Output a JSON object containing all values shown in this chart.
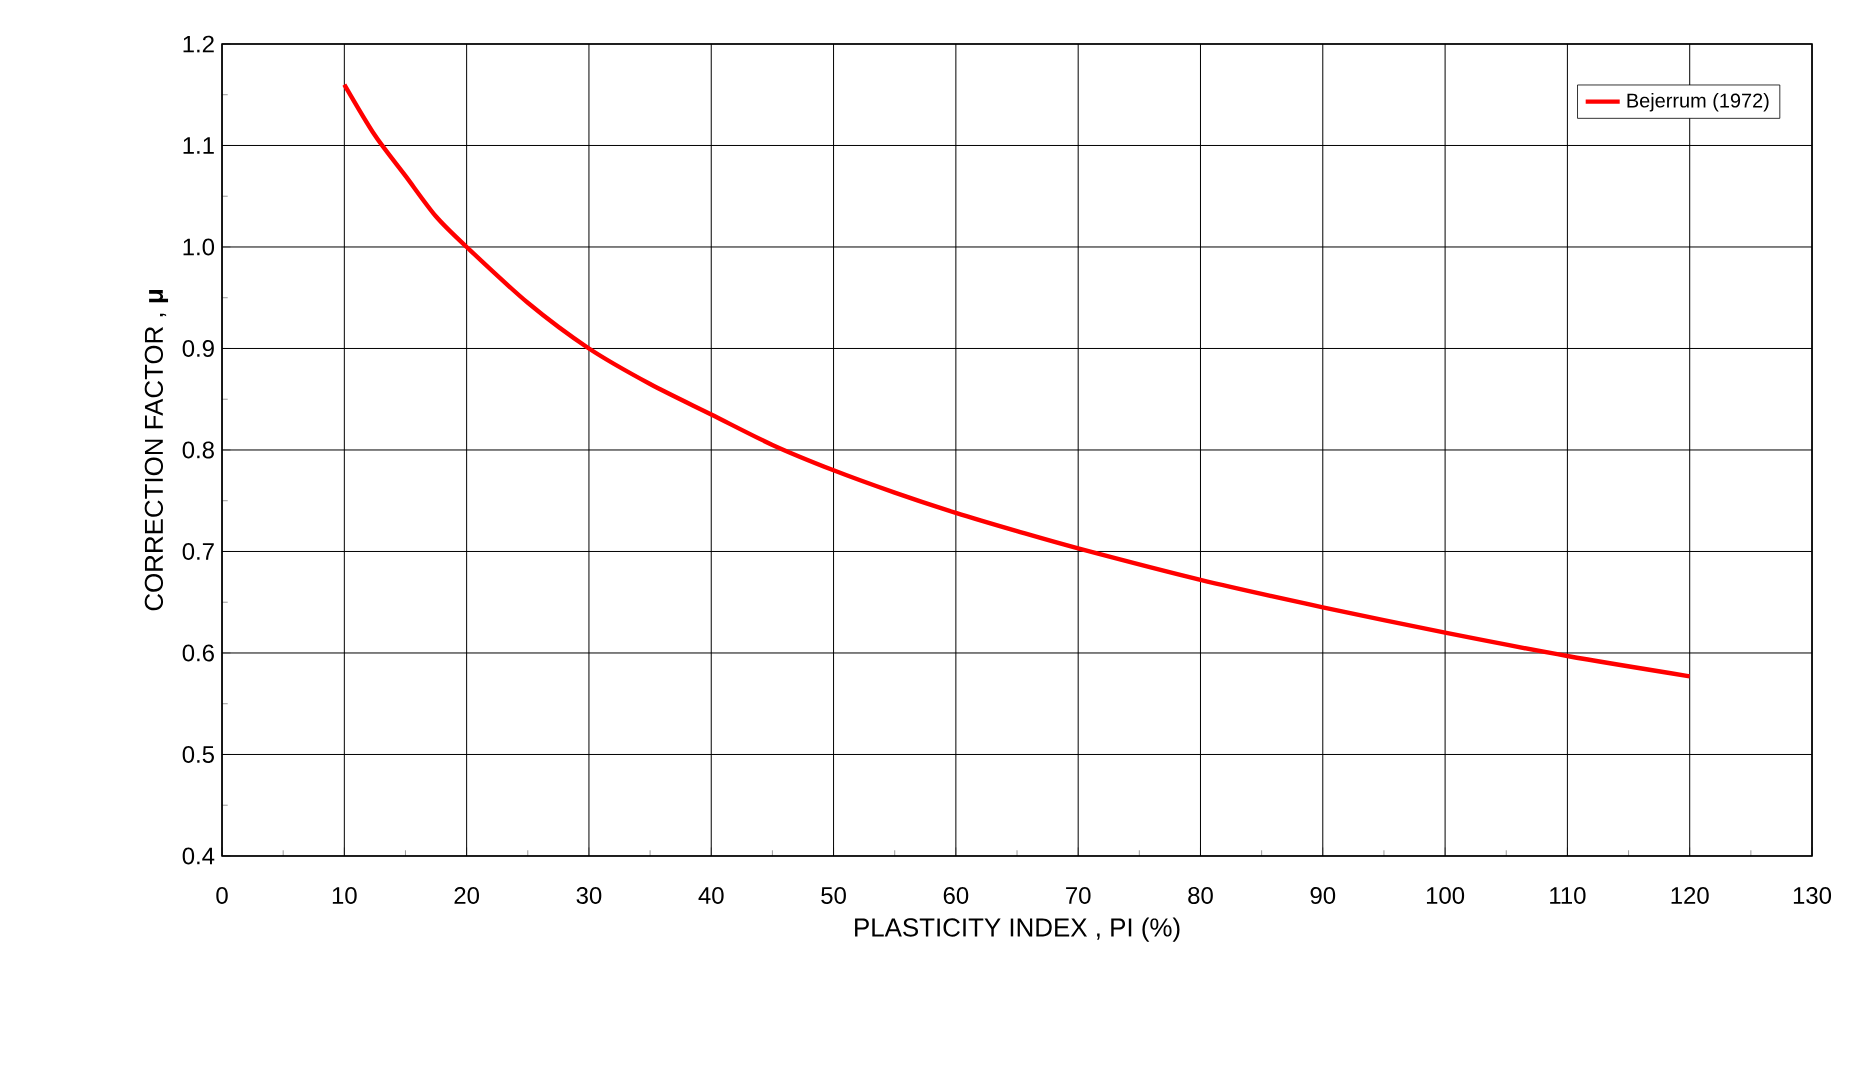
{
  "chart_data": {
    "type": "line",
    "xlabel": "PLASTICITY INDEX , PI (%)",
    "ylabel": "CORRECTION FACTOR , **μ**",
    "series": [
      {
        "name": "Bejerrum (1972)",
        "color": "#ff0000",
        "x": [
          10,
          12.5,
          15,
          17.5,
          20,
          25,
          30,
          35,
          40,
          45,
          50,
          55,
          60,
          65,
          70,
          80,
          90,
          100,
          110,
          120
        ],
        "values": [
          1.16,
          1.11,
          1.07,
          1.03,
          1.0,
          0.945,
          0.9,
          0.865,
          0.835,
          0.805,
          0.78,
          0.758,
          0.738,
          0.72,
          0.703,
          0.672,
          0.645,
          0.62,
          0.597,
          0.577
        ]
      }
    ],
    "xlim": [
      0,
      130
    ],
    "ylim": [
      0.4,
      1.2
    ],
    "xticks": [
      0,
      10,
      20,
      30,
      40,
      50,
      60,
      70,
      80,
      90,
      100,
      110,
      120,
      130
    ],
    "yticks": [
      {
        "value": 0.4,
        "label": "0.4"
      },
      {
        "value": 0.5,
        "label": "0.5"
      },
      {
        "value": 0.6,
        "label": "0.6"
      },
      {
        "value": 0.7,
        "label": "0.7"
      },
      {
        "value": 0.8,
        "label": "0.8"
      },
      {
        "value": 0.9,
        "label": "0.9"
      },
      {
        "value": 1.0,
        "label": "1.0"
      },
      {
        "value": 1.1,
        "label": "1.1"
      },
      {
        "value": 1.2,
        "label": "1.2"
      }
    ],
    "grid": true,
    "legend": "top right",
    "marker": "none",
    "line_style": "solid"
  }
}
